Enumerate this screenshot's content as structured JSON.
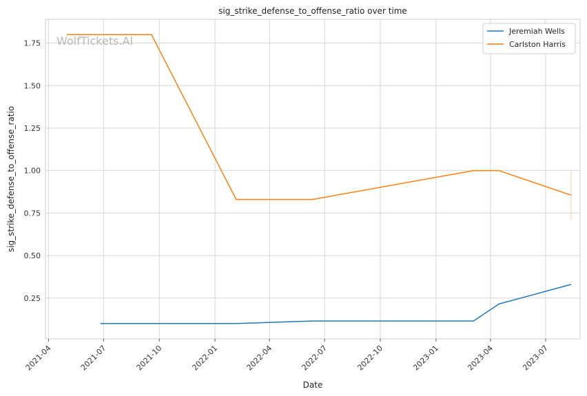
{
  "chart_data": {
    "type": "line",
    "title": "sig_strike_defense_to_offense_ratio over time",
    "xlabel": "Date",
    "ylabel": "sig_strike_defense_to_offense_ratio",
    "watermark": "WolfTickets.AI",
    "x_range": [
      "2021-03-27",
      "2023-08-27"
    ],
    "ylim": [
      0.01,
      1.89
    ],
    "grid": true,
    "legend_position": "top-right",
    "x_ticks": [
      "2021-04",
      "2021-07",
      "2021-10",
      "2022-01",
      "2022-04",
      "2022-07",
      "2022-10",
      "2023-01",
      "2023-04",
      "2023-07"
    ],
    "y_ticks": [
      {
        "value": 0.25,
        "label": "0.25"
      },
      {
        "value": 0.5,
        "label": "0.50"
      },
      {
        "value": 0.75,
        "label": "0.75"
      },
      {
        "value": 1.0,
        "label": "1.00"
      },
      {
        "value": 1.25,
        "label": "1.25"
      },
      {
        "value": 1.5,
        "label": "1.50"
      },
      {
        "value": 1.75,
        "label": "1.75"
      }
    ],
    "series": [
      {
        "name": "Jeremiah Wells",
        "color": "#1f77b4",
        "x": [
          "2021-06-26",
          "2022-02-05",
          "2022-06-11",
          "2023-03-04",
          "2023-04-15",
          "2023-08-12"
        ],
        "y": [
          0.1,
          0.1,
          0.115,
          0.115,
          0.215,
          0.33
        ]
      },
      {
        "name": "Carlston Harris",
        "color": "#ff7f0e",
        "x": [
          "2021-05-01",
          "2021-09-18",
          "2022-02-05",
          "2022-06-11",
          "2023-03-04",
          "2023-04-15",
          "2023-08-12"
        ],
        "y": [
          1.8,
          1.8,
          0.83,
          0.83,
          1.0,
          1.0,
          0.855
        ]
      }
    ],
    "error_bar": {
      "series": "Carlston Harris",
      "x": "2023-08-12",
      "low": 0.71,
      "high": 1.0
    }
  }
}
